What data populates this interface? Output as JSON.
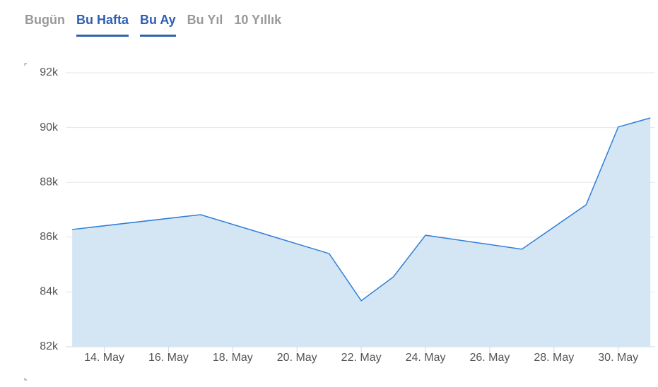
{
  "tabs": [
    {
      "label": "Bugün",
      "active": false
    },
    {
      "label": "Bu Hafta",
      "active": true
    },
    {
      "label": "Bu Ay",
      "active": true
    },
    {
      "label": "Bu Yıl",
      "active": false
    },
    {
      "label": "10 Yıllık",
      "active": false
    }
  ],
  "chart_data": {
    "type": "area",
    "color": "#2f7ed8",
    "fill": "#d4e6f4",
    "grid": true,
    "x": [
      13,
      17,
      21,
      22,
      23,
      24,
      27,
      29,
      30,
      31
    ],
    "values": [
      86280,
      86820,
      85400,
      83680,
      84550,
      86070,
      85560,
      87180,
      90020,
      90350
    ],
    "xlim": [
      12.8,
      31.15
    ],
    "xticks": [
      {
        "value": 14,
        "label": "14. May"
      },
      {
        "value": 16,
        "label": "16. May"
      },
      {
        "value": 18,
        "label": "18. May"
      },
      {
        "value": 20,
        "label": "20. May"
      },
      {
        "value": 22,
        "label": "22. May"
      },
      {
        "value": 24,
        "label": "24. May"
      },
      {
        "value": 26,
        "label": "26. May"
      },
      {
        "value": 28,
        "label": "28. May"
      },
      {
        "value": 30,
        "label": "30. May"
      }
    ],
    "ylim": [
      82000,
      92000
    ],
    "yticks": [
      {
        "value": 82000,
        "label": "82k"
      },
      {
        "value": 84000,
        "label": "84k"
      },
      {
        "value": 86000,
        "label": "86k"
      },
      {
        "value": 88000,
        "label": "88k"
      },
      {
        "value": 90000,
        "label": "90k"
      },
      {
        "value": 92000,
        "label": "92k"
      }
    ]
  }
}
